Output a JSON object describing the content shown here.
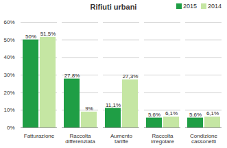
{
  "chart_data": {
    "type": "bar",
    "title": "Rifiuti urbani",
    "categories": [
      "Fatturazione",
      "Raccolta differenziata",
      "Aumento tariffe",
      "Raccolta irregolare",
      "Condizione cassonetti"
    ],
    "series": [
      {
        "name": "2015",
        "color": "#1f9e45",
        "values": [
          50,
          27.8,
          11.1,
          5.6,
          5.6
        ],
        "value_labels": [
          "50%",
          "27,8%",
          "11,1%",
          "5,6%",
          "5,6%"
        ]
      },
      {
        "name": "2014",
        "color": "#c5e6a3",
        "values": [
          51.5,
          9,
          27.3,
          6.1,
          6.1
        ],
        "value_labels": [
          "51,5%",
          "9%",
          "27,3%",
          "6,1%",
          "6,1%"
        ]
      }
    ],
    "ylim": [
      0,
      60
    ],
    "yticks": [
      {
        "value": 0,
        "label": "0%"
      },
      {
        "value": 10,
        "label": "10%"
      },
      {
        "value": 20,
        "label": "20%"
      },
      {
        "value": 30,
        "label": "30%"
      },
      {
        "value": 40,
        "label": "40%"
      },
      {
        "value": 50,
        "label": "50%"
      },
      {
        "value": 60,
        "label": "60%"
      }
    ],
    "grid": true,
    "legend": "top-right",
    "data_labels": true
  }
}
